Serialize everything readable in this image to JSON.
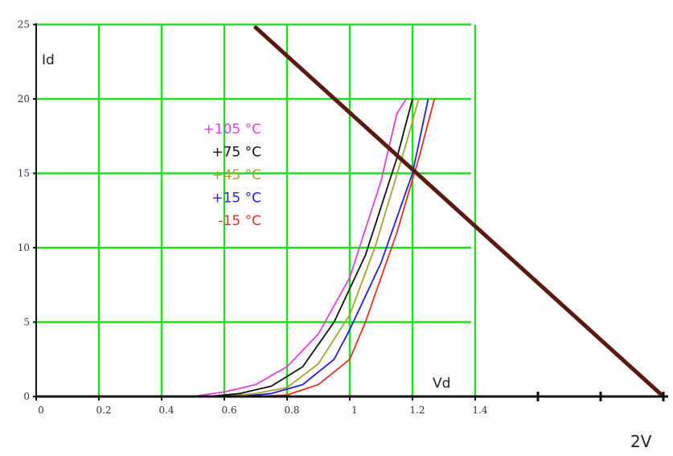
{
  "chart_data": {
    "type": "line",
    "title": "",
    "xlabel": "Vd",
    "ylabel": "Id",
    "xlim": [
      0,
      2
    ],
    "ylim": [
      0,
      25
    ],
    "grid": true,
    "legend_placement": "inside upper-left of curves",
    "grid_color": "#22dd22",
    "x_tick_labels": [
      "0",
      "0.2",
      "0.4",
      "0.6",
      "0.8",
      "1",
      "1.2",
      "1.4"
    ],
    "x_extra_tick_values": [
      1.6,
      1.8,
      2.0
    ],
    "y_tick_labels": [
      "0",
      "5",
      "10",
      "15",
      "20",
      "25"
    ],
    "end_label": "2V",
    "series": [
      {
        "name": "+105 °C",
        "color": "#e040e0",
        "points": [
          [
            0.5,
            0
          ],
          [
            0.6,
            0.3
          ],
          [
            0.7,
            0.8
          ],
          [
            0.8,
            2.0
          ],
          [
            0.9,
            4.2
          ],
          [
            1.0,
            8.0
          ],
          [
            1.1,
            14.5
          ],
          [
            1.15,
            19.0
          ],
          [
            1.18,
            20.0
          ]
        ]
      },
      {
        "name": "+75 °C",
        "color": "#111111",
        "points": [
          [
            0.55,
            0
          ],
          [
            0.65,
            0.2
          ],
          [
            0.75,
            0.7
          ],
          [
            0.85,
            2.0
          ],
          [
            0.95,
            5.0
          ],
          [
            1.05,
            9.5
          ],
          [
            1.15,
            16.0
          ],
          [
            1.2,
            20.0
          ]
        ]
      },
      {
        "name": "+45 °C",
        "color": "#aaa030",
        "points": [
          [
            0.6,
            0
          ],
          [
            0.7,
            0.2
          ],
          [
            0.8,
            0.6
          ],
          [
            0.9,
            2.2
          ],
          [
            1.0,
            5.5
          ],
          [
            1.08,
            10.0
          ],
          [
            1.18,
            17.0
          ],
          [
            1.22,
            20.0
          ]
        ]
      },
      {
        "name": "+15 °C",
        "color": "#1f1fe0",
        "points": [
          [
            0.65,
            0
          ],
          [
            0.75,
            0.2
          ],
          [
            0.85,
            0.8
          ],
          [
            0.95,
            2.5
          ],
          [
            1.0,
            4.5
          ],
          [
            1.1,
            9.0
          ],
          [
            1.2,
            15.0
          ],
          [
            1.25,
            20.0
          ]
        ]
      },
      {
        "name": "-15 °C",
        "color": "#e03020",
        "points": [
          [
            0.7,
            0
          ],
          [
            0.8,
            0.1
          ],
          [
            0.9,
            0.8
          ],
          [
            1.0,
            2.5
          ],
          [
            1.05,
            5.0
          ],
          [
            1.15,
            11.0
          ],
          [
            1.22,
            16.0
          ],
          [
            1.27,
            20.0
          ]
        ]
      }
    ],
    "load_line": {
      "color": "#5a1a10",
      "points": [
        [
          0.7,
          24.8
        ],
        [
          2.0,
          0
        ]
      ]
    }
  }
}
